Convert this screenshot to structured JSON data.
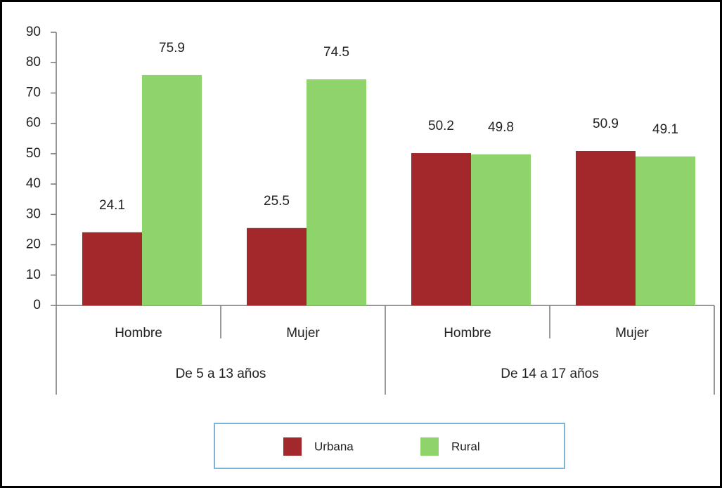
{
  "chart_data": {
    "type": "bar",
    "categories": [
      "Hombre",
      "Mujer",
      "Hombre",
      "Mujer"
    ],
    "groups": [
      "De 5 a 13 años",
      "De 14 a 17 años"
    ],
    "series": [
      {
        "name": "Urbana",
        "color": "#a3282b",
        "values": [
          24.1,
          25.5,
          50.2,
          50.9
        ]
      },
      {
        "name": "Rural",
        "color": "#8fd46a",
        "values": [
          75.9,
          74.5,
          49.8,
          49.1
        ]
      }
    ],
    "ylim": [
      0,
      90
    ],
    "yticks": [
      0,
      10,
      20,
      30,
      40,
      50,
      60,
      70,
      80,
      90
    ],
    "grid": false,
    "legend": "bottom"
  }
}
